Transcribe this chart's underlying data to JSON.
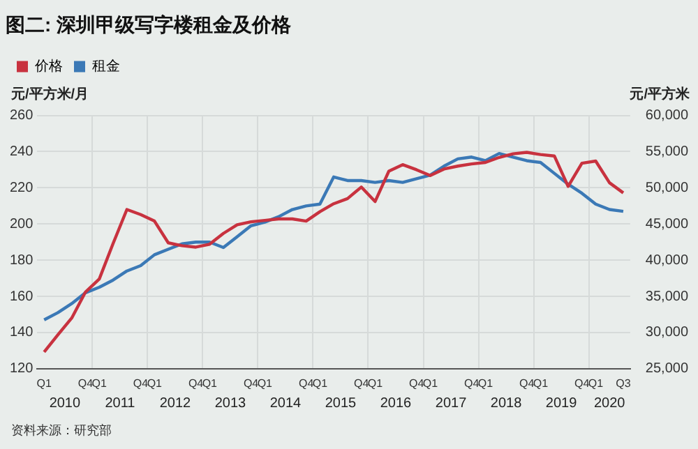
{
  "chart_data": {
    "type": "line",
    "title": "图二: 深圳甲级写字楼租金及价格",
    "ylabel": "元/平方米/月",
    "y2label": "元/平方米",
    "categories": [
      "Q1",
      null,
      null,
      "Q4",
      "Q1",
      null,
      null,
      "Q4",
      "Q1",
      null,
      null,
      "Q4",
      "Q1",
      null,
      null,
      "Q4",
      "Q1",
      null,
      null,
      "Q4",
      "Q1",
      null,
      null,
      "Q4",
      "Q1",
      null,
      null,
      "Q4",
      "Q1",
      null,
      null,
      "Q4",
      "Q1",
      null,
      null,
      "Q4",
      "Q1",
      null,
      null,
      "Q4",
      "Q1",
      null,
      "Q3"
    ],
    "series": [
      {
        "name": "价格",
        "color": "#c8323f",
        "axis": "y2",
        "values": [
          27300,
          29700,
          32000,
          35600,
          37400,
          42300,
          47000,
          46300,
          45400,
          42400,
          42000,
          41800,
          42200,
          43700,
          44900,
          45300,
          45500,
          45700,
          45700,
          45400,
          46700,
          47800,
          48500,
          50100,
          48100,
          52300,
          53200,
          52500,
          51700,
          52600,
          53000,
          53300,
          53500,
          54200,
          54700,
          54900,
          54600,
          54400,
          50200,
          53400,
          53700,
          50700,
          49300
        ]
      },
      {
        "name": "租金",
        "color": "#3b79b6",
        "axis": "y",
        "values": [
          147,
          151,
          156,
          162,
          165,
          169,
          174,
          177,
          183,
          186,
          189,
          190,
          190,
          187,
          193,
          199,
          201,
          204,
          208,
          210,
          211,
          226,
          224,
          224,
          223,
          224,
          223,
          225,
          227,
          232,
          236,
          237,
          235,
          239,
          237,
          235,
          234,
          228,
          222,
          217,
          211,
          208,
          207
        ]
      }
    ],
    "ylim": [
      120,
      260
    ],
    "yticks": [
      120,
      140,
      160,
      180,
      200,
      220,
      240,
      260
    ],
    "y2lim": [
      25000,
      60000
    ],
    "y2ticks": [
      {
        "value": 25000,
        "label": "25,000"
      },
      {
        "value": 30000,
        "label": "30,000"
      },
      {
        "value": 35000,
        "label": "35,000"
      },
      {
        "value": 40000,
        "label": "40,000"
      },
      {
        "value": 45000,
        "label": "45,000"
      },
      {
        "value": 50000,
        "label": "50,000"
      },
      {
        "value": 55000,
        "label": "55,000"
      },
      {
        "value": 60000,
        "label": "60,000"
      }
    ],
    "grid": true,
    "legend": "top left",
    "marker": "none",
    "line_style": "solid",
    "annotations": [
      "2010",
      "2011",
      "2012",
      "2013",
      "2014",
      "2015",
      "2016",
      "2017",
      "2018",
      "2019",
      "2020",
      "资料来源：研究部"
    ]
  }
}
